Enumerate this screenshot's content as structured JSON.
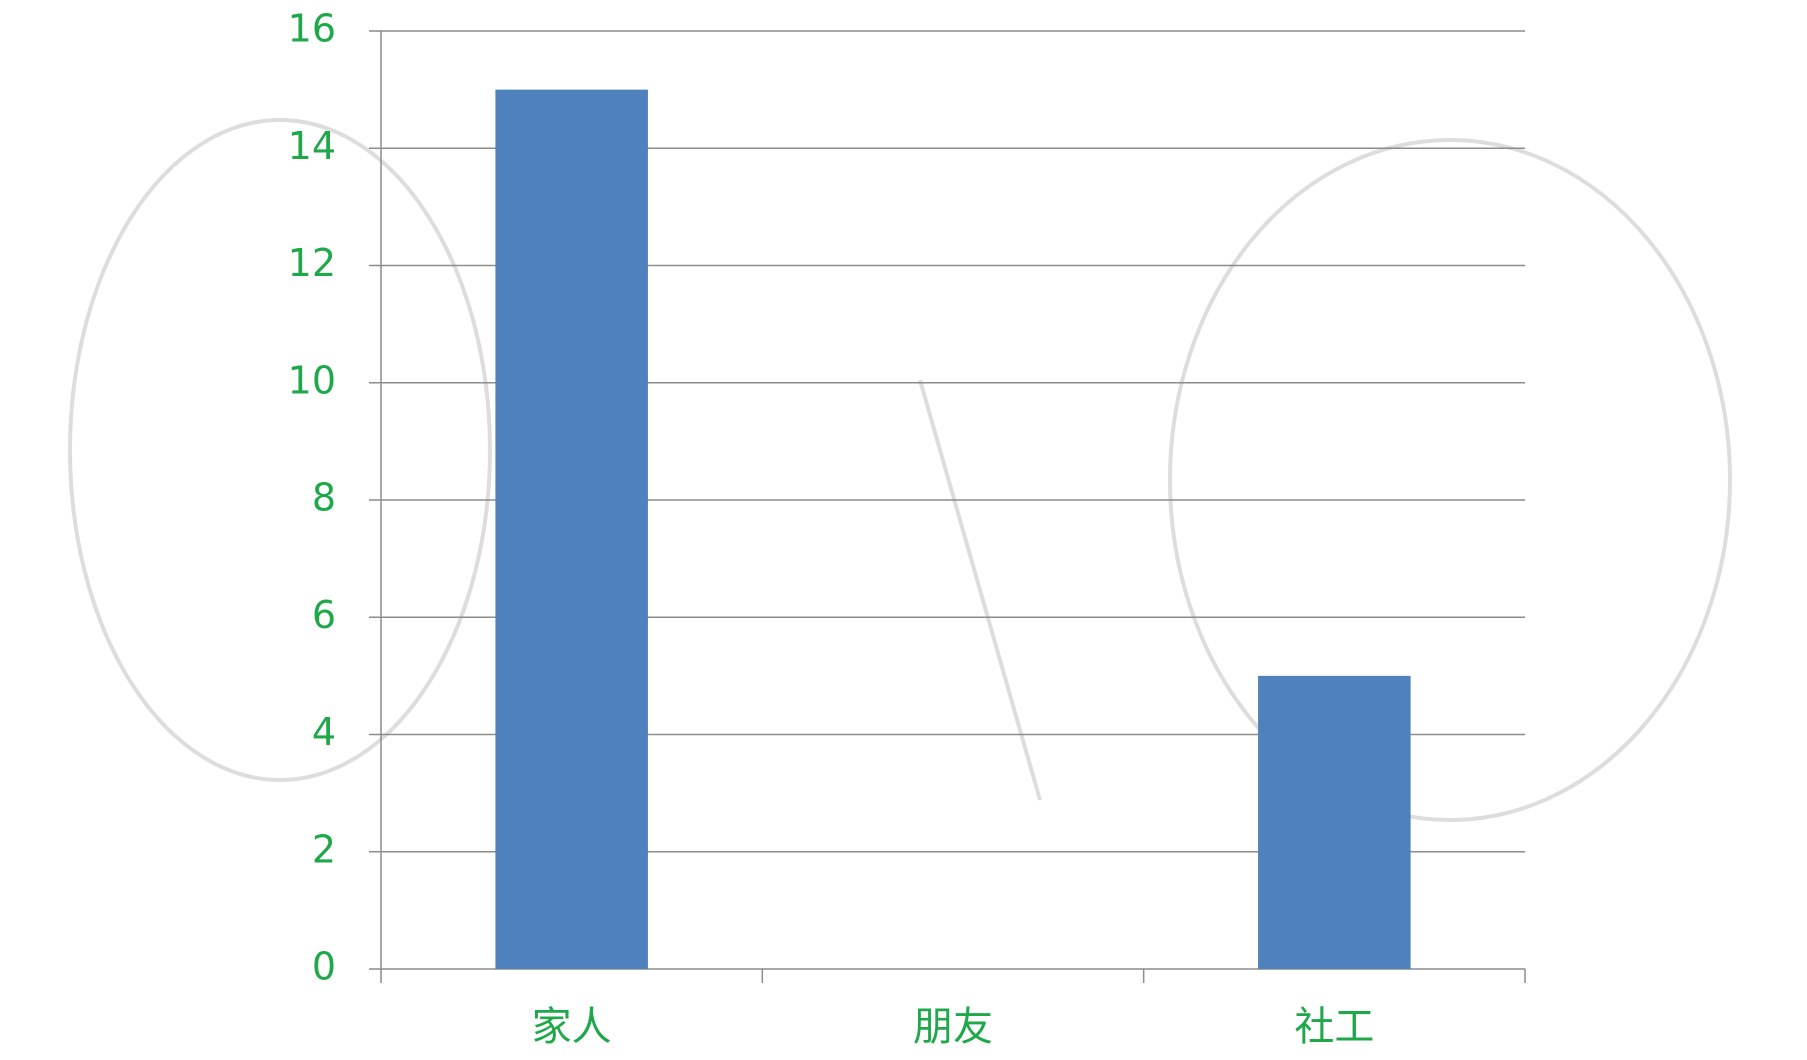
{
  "chart_data": {
    "type": "bar",
    "categories": [
      "家人",
      "朋友",
      "社工"
    ],
    "values": [
      15,
      0,
      5
    ],
    "color": "#4f81bd",
    "ylim": [
      0,
      16
    ],
    "yticks": [
      0,
      2,
      4,
      6,
      8,
      10,
      12,
      14,
      16
    ],
    "grid": true
  }
}
